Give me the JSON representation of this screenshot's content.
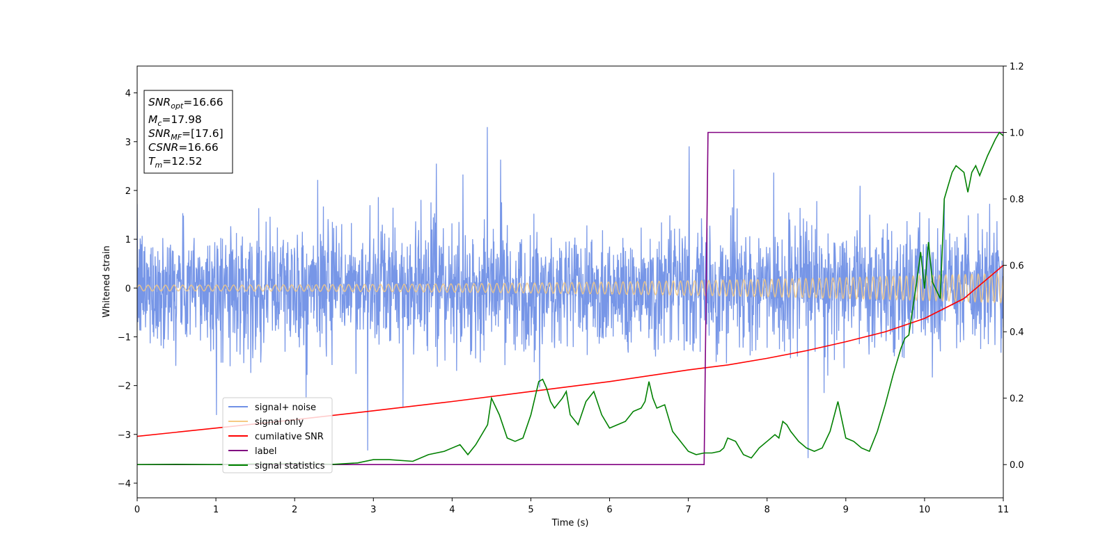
{
  "chart_data": {
    "type": "line",
    "xlabel": "Time (s)",
    "ylabel": "Whitened strain",
    "xlim": [
      0,
      11
    ],
    "ylim_left": [
      -4.3,
      4.55
    ],
    "ylim_right": [
      -0.1,
      1.2
    ],
    "x_ticks": [
      0,
      1,
      2,
      3,
      4,
      5,
      6,
      7,
      8,
      9,
      10,
      11
    ],
    "y_ticks_left": [
      -4,
      -3,
      -2,
      -1,
      0,
      1,
      2,
      3,
      4
    ],
    "y_ticks_right": [
      "0.0",
      "0.2",
      "0.4",
      "0.6",
      "0.8",
      "1.0",
      "1.2"
    ],
    "grid": false,
    "legend_location": "lower-left",
    "stats_box": [
      {
        "base": "SNR",
        "sub": "opt",
        "value": "=16.66"
      },
      {
        "base": "M",
        "sub": "c",
        "value": "=17.98"
      },
      {
        "base": "SNR",
        "sub": "MF",
        "value": "=[17.6]"
      },
      {
        "base": "CSNR",
        "sub": "",
        "value": "=16.66"
      },
      {
        "base": "T",
        "sub": "m",
        "value": "=12.52"
      }
    ],
    "series": [
      {
        "name": "signal+ noise",
        "axis": "left",
        "color": "#7090e6",
        "description_values": {
          "envelope_typical": [
            -1.6,
            1.7
          ],
          "extremes": [
            -3.9,
            3.3
          ]
        }
      },
      {
        "name": "signal only",
        "axis": "left",
        "color": "#f5c983",
        "amplitude_start": 0.06,
        "amplitude_end": 0.3
      },
      {
        "name": "cumilative SNR",
        "axis": "right",
        "color": "#ff0000",
        "x": [
          0,
          1,
          2,
          3,
          4,
          5,
          6,
          7,
          7.5,
          8,
          8.5,
          9,
          9.5,
          10,
          10.5,
          11
        ],
        "y": [
          0.085,
          0.11,
          0.135,
          0.162,
          0.19,
          0.22,
          0.25,
          0.285,
          0.3,
          0.32,
          0.343,
          0.37,
          0.4,
          0.44,
          0.5,
          0.6
        ]
      },
      {
        "name": "label",
        "axis": "right",
        "color": "#800080",
        "x": [
          0,
          7.2,
          7.25,
          11
        ],
        "y": [
          0,
          0,
          1,
          1
        ]
      },
      {
        "name": "signal statistics",
        "axis": "right",
        "color": "#008000",
        "x": [
          0,
          0.5,
          1,
          1.5,
          2,
          2.5,
          2.8,
          3,
          3.2,
          3.5,
          3.7,
          3.9,
          4.0,
          4.1,
          4.2,
          4.3,
          4.45,
          4.5,
          4.6,
          4.7,
          4.8,
          4.9,
          5.0,
          5.1,
          5.15,
          5.2,
          5.25,
          5.3,
          5.4,
          5.45,
          5.5,
          5.6,
          5.7,
          5.8,
          5.9,
          6.0,
          6.1,
          6.2,
          6.3,
          6.4,
          6.45,
          6.5,
          6.55,
          6.6,
          6.7,
          6.8,
          6.9,
          7.0,
          7.1,
          7.2,
          7.3,
          7.4,
          7.45,
          7.5,
          7.6,
          7.7,
          7.8,
          7.9,
          8.0,
          8.1,
          8.15,
          8.2,
          8.25,
          8.3,
          8.4,
          8.5,
          8.6,
          8.7,
          8.8,
          8.9,
          9.0,
          9.1,
          9.2,
          9.3,
          9.4,
          9.5,
          9.6,
          9.7,
          9.75,
          9.8,
          9.9,
          9.95,
          10.0,
          10.05,
          10.1,
          10.2,
          10.25,
          10.3,
          10.35,
          10.4,
          10.5,
          10.55,
          10.6,
          10.65,
          10.7,
          10.75,
          10.8,
          10.9,
          10.95,
          11.0
        ],
        "y": [
          0,
          0.001,
          0.0,
          0.002,
          0.003,
          0.001,
          0.005,
          0.015,
          0.015,
          0.01,
          0.03,
          0.04,
          0.05,
          0.06,
          0.03,
          0.06,
          0.12,
          0.2,
          0.15,
          0.08,
          0.07,
          0.08,
          0.15,
          0.25,
          0.257,
          0.23,
          0.19,
          0.17,
          0.2,
          0.22,
          0.15,
          0.12,
          0.19,
          0.22,
          0.15,
          0.11,
          0.12,
          0.13,
          0.16,
          0.17,
          0.19,
          0.25,
          0.2,
          0.17,
          0.18,
          0.1,
          0.07,
          0.04,
          0.03,
          0.035,
          0.035,
          0.04,
          0.05,
          0.08,
          0.07,
          0.03,
          0.02,
          0.05,
          0.07,
          0.09,
          0.08,
          0.13,
          0.12,
          0.1,
          0.07,
          0.05,
          0.04,
          0.05,
          0.1,
          0.19,
          0.08,
          0.07,
          0.05,
          0.04,
          0.1,
          0.18,
          0.27,
          0.35,
          0.38,
          0.39,
          0.55,
          0.64,
          0.53,
          0.67,
          0.55,
          0.5,
          0.8,
          0.84,
          0.88,
          0.9,
          0.88,
          0.82,
          0.88,
          0.9,
          0.87,
          0.9,
          0.93,
          0.98,
          1.0,
          0.99
        ]
      }
    ]
  }
}
